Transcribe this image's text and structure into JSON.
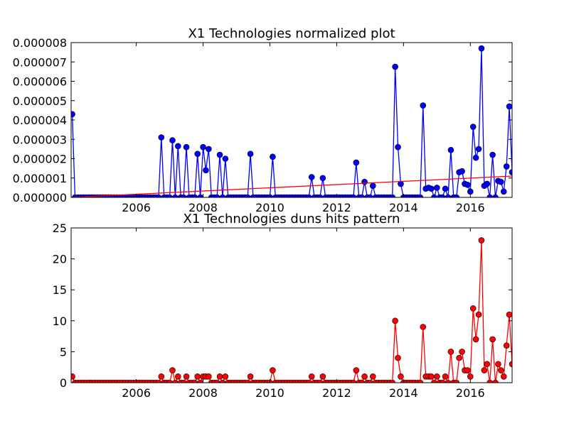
{
  "chart_data": [
    {
      "type": "line",
      "title": "X1 Technologies normalized plot",
      "xlabel": "",
      "ylabel": "",
      "xlim": [
        2004.05,
        2017.25
      ],
      "ylim": [
        0,
        8e-06
      ],
      "xticks": [
        2006,
        2008,
        2010,
        2012,
        2014,
        2016
      ],
      "xtick_labels": [
        "2006",
        "2008",
        "2010",
        "2012",
        "2014",
        "2016"
      ],
      "yticks": [
        0,
        1e-06,
        2e-06,
        3e-06,
        4e-06,
        5e-06,
        6e-06,
        7e-06,
        8e-06
      ],
      "ytick_labels": [
        "0.000000",
        "0.000001",
        "0.000002",
        "0.000003",
        "0.000004",
        "0.000005",
        "0.000006",
        "0.000007",
        "0.000008"
      ],
      "grid": false,
      "series": [
        {
          "color": "#0000ff",
          "marker": "circle",
          "points": [
            [
              2004.05,
              4.3e-06
            ],
            [
              2006.75,
              3.1e-06
            ],
            [
              2007.08,
              2.95e-06
            ],
            [
              2007.25,
              2.65e-06
            ],
            [
              2007.5,
              2.6e-06
            ],
            [
              2007.83,
              2.25e-06
            ],
            [
              2008.0,
              2.6e-06
            ],
            [
              2008.08,
              1.4e-06
            ],
            [
              2008.17,
              2.5e-06
            ],
            [
              2008.5,
              2.2e-06
            ],
            [
              2008.67,
              2e-06
            ],
            [
              2009.42,
              2.25e-06
            ],
            [
              2010.08,
              2.1e-06
            ],
            [
              2011.25,
              1.05e-06
            ],
            [
              2011.58,
              1e-06
            ],
            [
              2012.58,
              1.8e-06
            ],
            [
              2012.83,
              8e-07
            ],
            [
              2013.08,
              6e-07
            ],
            [
              2013.75,
              6.75e-06
            ],
            [
              2013.83,
              2.6e-06
            ],
            [
              2013.92,
              7e-07
            ],
            [
              2014.58,
              4.75e-06
            ],
            [
              2014.67,
              4.5e-07
            ],
            [
              2014.75,
              5e-07
            ],
            [
              2014.83,
              4.5e-07
            ],
            [
              2015.0,
              5e-07
            ],
            [
              2015.25,
              4.5e-07
            ],
            [
              2015.42,
              2.45e-06
            ],
            [
              2015.67,
              1.3e-06
            ],
            [
              2015.75,
              1.35e-06
            ],
            [
              2015.83,
              7e-07
            ],
            [
              2015.92,
              6.5e-07
            ],
            [
              2016.0,
              3e-07
            ],
            [
              2016.08,
              3.65e-06
            ],
            [
              2016.17,
              2.05e-06
            ],
            [
              2016.25,
              2.5e-06
            ],
            [
              2016.33,
              7.7e-06
            ],
            [
              2016.42,
              6e-07
            ],
            [
              2016.5,
              7e-07
            ],
            [
              2016.67,
              2.2e-06
            ],
            [
              2016.83,
              8.5e-07
            ],
            [
              2016.92,
              8e-07
            ],
            [
              2017.0,
              3e-07
            ],
            [
              2017.08,
              1.6e-06
            ],
            [
              2017.17,
              4.7e-06
            ],
            [
              2017.25,
              1.3e-06
            ]
          ]
        },
        {
          "type": "trend-line",
          "color": "#ff0000",
          "points": [
            [
              2004.05,
              0.0
            ],
            [
              2017.25,
              1.1e-06
            ]
          ]
        }
      ]
    },
    {
      "type": "line",
      "title": "X1 Technologies duns hits pattern",
      "xlabel": "",
      "ylabel": "",
      "xlim": [
        2004.05,
        2017.25
      ],
      "ylim": [
        0,
        25
      ],
      "xticks": [
        2006,
        2008,
        2010,
        2012,
        2014,
        2016
      ],
      "xtick_labels": [
        "2006",
        "2008",
        "2010",
        "2012",
        "2014",
        "2016"
      ],
      "yticks": [
        0,
        5,
        10,
        15,
        20,
        25
      ],
      "ytick_labels": [
        "0",
        "5",
        "10",
        "15",
        "20",
        "25"
      ],
      "grid": false,
      "series": [
        {
          "color": "#ff0000",
          "marker": "circle",
          "points": [
            [
              2004.05,
              1
            ],
            [
              2006.75,
              1
            ],
            [
              2007.08,
              2
            ],
            [
              2007.25,
              1
            ],
            [
              2007.5,
              1
            ],
            [
              2007.83,
              1
            ],
            [
              2008.0,
              1
            ],
            [
              2008.08,
              1
            ],
            [
              2008.17,
              1
            ],
            [
              2008.5,
              1
            ],
            [
              2008.67,
              1
            ],
            [
              2009.42,
              1
            ],
            [
              2010.08,
              2
            ],
            [
              2011.25,
              1
            ],
            [
              2011.58,
              1
            ],
            [
              2012.58,
              2
            ],
            [
              2012.83,
              1
            ],
            [
              2013.08,
              1
            ],
            [
              2013.75,
              10
            ],
            [
              2013.83,
              4
            ],
            [
              2013.92,
              1
            ],
            [
              2014.58,
              9
            ],
            [
              2014.67,
              1
            ],
            [
              2014.75,
              1
            ],
            [
              2014.83,
              1
            ],
            [
              2015.0,
              1
            ],
            [
              2015.25,
              1
            ],
            [
              2015.42,
              5
            ],
            [
              2015.67,
              4
            ],
            [
              2015.75,
              5
            ],
            [
              2015.83,
              2
            ],
            [
              2015.92,
              2
            ],
            [
              2016.0,
              1
            ],
            [
              2016.08,
              12
            ],
            [
              2016.17,
              7
            ],
            [
              2016.25,
              11
            ],
            [
              2016.33,
              23
            ],
            [
              2016.42,
              2
            ],
            [
              2016.5,
              3
            ],
            [
              2016.67,
              7
            ],
            [
              2016.83,
              3
            ],
            [
              2016.92,
              2
            ],
            [
              2017.0,
              1
            ],
            [
              2017.08,
              6
            ],
            [
              2017.17,
              11
            ],
            [
              2017.25,
              3
            ]
          ]
        }
      ]
    }
  ]
}
